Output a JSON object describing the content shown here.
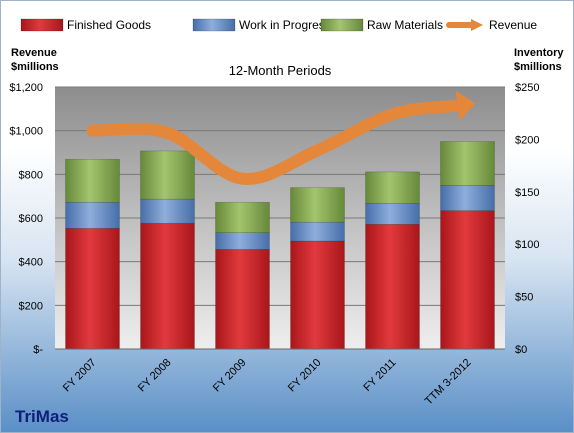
{
  "chart_data": {
    "type": "bar",
    "stacked": true,
    "title": "12-Month Periods",
    "categories": [
      "FY 2007",
      "FY 2008",
      "FY 2009",
      "FY 2010",
      "FY 2011",
      "TTM 3-2012"
    ],
    "series": [
      {
        "name": "Finished Goods",
        "axis": "right",
        "color": "#c9262b",
        "values": [
          115,
          120,
          95,
          103,
          119,
          132
        ]
      },
      {
        "name": "Work in Progress",
        "axis": "right",
        "color": "#5b83bf",
        "values": [
          25,
          23,
          16,
          18,
          20,
          24
        ]
      },
      {
        "name": "Raw Materials",
        "axis": "right",
        "color": "#7da34a",
        "values": [
          41,
          46,
          29,
          33,
          30,
          42
        ]
      },
      {
        "name": "Revenue",
        "type": "line",
        "axis": "left",
        "color": "#e4873b",
        "values": [
          1000,
          990,
          780,
          910,
          1075,
          1120
        ]
      }
    ],
    "y_left": {
      "label_line1": "Revenue",
      "label_line2": "$millions",
      "ylim": [
        0,
        1200
      ],
      "ticks": [
        0,
        200,
        400,
        600,
        800,
        1000,
        1200
      ],
      "tick_labels": [
        "$-",
        "$200",
        "$400",
        "$600",
        "$800",
        "$1,000",
        "$1,200"
      ]
    },
    "y_right": {
      "label_line1": "Inventory",
      "label_line2": "$millions",
      "ylim": [
        0,
        250
      ],
      "ticks": [
        0,
        50,
        100,
        150,
        200,
        250
      ],
      "tick_labels": [
        "$0",
        "$50",
        "$100",
        "$150",
        "$200",
        "$250"
      ]
    },
    "grid": true,
    "legend_position": "top"
  },
  "brand": "TriMas"
}
